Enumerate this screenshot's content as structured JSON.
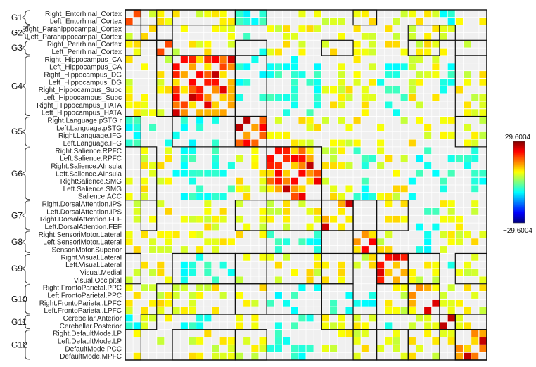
{
  "chart_data": {
    "type": "heatmap",
    "title": "",
    "colorbar": {
      "max_label": "29.6004",
      "min_label": "−29.6004",
      "range": [
        -29.6004,
        29.6004
      ],
      "colormap": "jet"
    },
    "groups": [
      {
        "label": "G1",
        "rois": [
          "Right_Entorhinal_Cortex",
          "Left_Entorhinal_Cortex"
        ]
      },
      {
        "label": "G2",
        "rois": [
          "Right_Parahippocampal_Cortex",
          "Left_Parahippocampal_Cortex"
        ]
      },
      {
        "label": "G3",
        "rois": [
          "Right_Perirhinal_Cortex",
          "Left_Perirhinal_Cortex"
        ]
      },
      {
        "label": "G4",
        "rois": [
          "Right_Hippocampus_CA",
          "Left_Hippocampus_CA",
          "Right_Hippocampus_DG",
          "Left_Hippocampus_DG",
          "Right_Hippocampus_Subc",
          "Left_Hippocampus_Subc",
          "Right_Hippocampus_HATA",
          "Left_Hippocampus_HATA"
        ]
      },
      {
        "label": "G5",
        "rois": [
          "Right.Language.pSTG r",
          "Left.Language.pSTG",
          "Right.Language.IFG",
          "Left.Language.IFG"
        ]
      },
      {
        "label": "G6",
        "rois": [
          "Right.Salience.RPFC",
          "Left.Salience.RPFC",
          "Right.Salience.AInsula",
          "Left.Salience.AInsula",
          "RightSalience.SMG",
          "Left.Salience.SMG",
          "Salience.ACC"
        ]
      },
      {
        "label": "G7",
        "rois": [
          "Right.DorsalAttention.IPS",
          "Left.DorsalAttention.IPS",
          "Right.DorsalAttention.FEF",
          "Left.DorsalAttention.FEF"
        ]
      },
      {
        "label": "G8",
        "rois": [
          "Right.SensoriMotor.Lateral",
          "Left.SensoriMotor.Lateral",
          "SensoriMotor.Superior"
        ]
      },
      {
        "label": "G9",
        "rois": [
          "Right.Visual.Lateral",
          "Left.Visual.Lateral",
          "Visual.Medial",
          "Visual.Occipital"
        ]
      },
      {
        "label": "G10",
        "rois": [
          "Right.FrontoParietal.PPC",
          "Left.FrontoParietal.PPC",
          "Right.FrontoParietal.LPFC",
          "Left.FrontoParietal.LPFC"
        ]
      },
      {
        "label": "G11",
        "rois": [
          "Cerebellar.Anterior",
          "Cerebellar.Posterior"
        ]
      },
      {
        "label": "G12",
        "rois": [
          "Right.DefaultMode.LP",
          "Left.DefaultMode.LP",
          "DefaultMode.PCC",
          "DefaultMode.MPFC"
        ]
      }
    ],
    "values_note": ""
  }
}
